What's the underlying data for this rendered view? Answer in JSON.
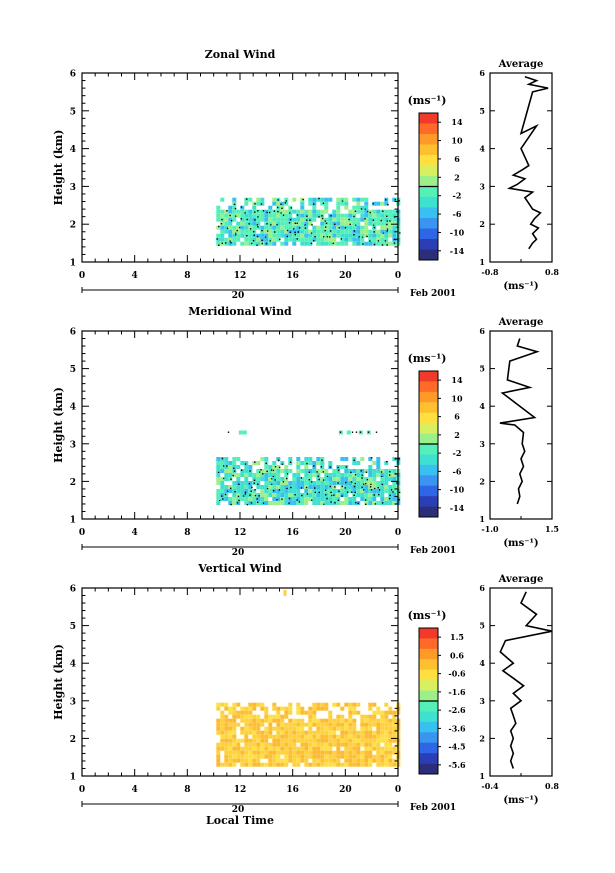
{
  "chart_data": [
    {
      "type": "heatmap",
      "title": "Zonal Wind",
      "ylabel": "Height (km)",
      "ylim": [
        1,
        6
      ],
      "yticks": [
        "1",
        "2",
        "3",
        "4",
        "5",
        "6"
      ],
      "xticks": [
        "0",
        "4",
        "8",
        "12",
        "16",
        "20",
        "0"
      ],
      "xlim": [
        0,
        24
      ],
      "date_day": "20",
      "date_month": "Feb 2001",
      "colorbar": {
        "unit": "(ms⁻¹)",
        "labels": [
          "14",
          "10",
          "6",
          "2",
          "-2",
          "-6",
          "-10",
          "-14"
        ]
      },
      "data_region": {
        "x_start": 10.2,
        "x_end": 24,
        "y_start": 1.45,
        "y_end": 2.7,
        "dominant_color": "#55f0b8"
      },
      "average_profile": {
        "title": "Average",
        "xlabel": "(ms⁻¹)",
        "xticks": [
          "-0.8",
          "0.8"
        ],
        "xlim": [
          -0.8,
          0.8
        ],
        "ylim": [
          1,
          6
        ],
        "points": [
          [
            0.2,
            1.35
          ],
          [
            0.3,
            1.5
          ],
          [
            0.4,
            1.6
          ],
          [
            0.3,
            1.75
          ],
          [
            0.45,
            1.9
          ],
          [
            0.25,
            2.0
          ],
          [
            0.35,
            2.15
          ],
          [
            0.5,
            2.3
          ],
          [
            0.3,
            2.4
          ],
          [
            0.2,
            2.55
          ],
          [
            0.1,
            2.7
          ],
          [
            0.3,
            2.85
          ],
          [
            -0.3,
            2.95
          ],
          [
            -0.1,
            3.05
          ],
          [
            0.1,
            3.2
          ],
          [
            -0.2,
            3.3
          ],
          [
            0.05,
            3.45
          ],
          [
            0.2,
            3.55
          ],
          [
            0.0,
            4.0
          ],
          [
            0.4,
            4.6
          ],
          [
            0.2,
            4.5
          ],
          [
            0.0,
            4.4
          ],
          [
            0.3,
            5.5
          ],
          [
            0.7,
            5.6
          ],
          [
            0.2,
            5.7
          ],
          [
            0.4,
            5.8
          ],
          [
            0.1,
            5.9
          ]
        ]
      }
    },
    {
      "type": "heatmap",
      "title": "Meridional Wind",
      "ylabel": "Height (km)",
      "ylim": [
        1,
        6
      ],
      "yticks": [
        "1",
        "2",
        "3",
        "4",
        "5",
        "6"
      ],
      "xticks": [
        "0",
        "4",
        "8",
        "12",
        "16",
        "20",
        "0"
      ],
      "xlim": [
        0,
        24
      ],
      "date_day": "20",
      "date_month": "Feb 2001",
      "colorbar": {
        "unit": "(ms⁻¹)",
        "labels": [
          "14",
          "10",
          "6",
          "2",
          "-2",
          "-6",
          "-10",
          "-14"
        ]
      },
      "data_region": {
        "x_start": 10.2,
        "x_end": 24,
        "y_start": 1.45,
        "y_end": 2.65,
        "dominant_color": "#3ee0d0"
      },
      "average_profile": {
        "title": "Average",
        "xlabel": "(ms⁻¹)",
        "xticks": [
          "-1.0",
          "1.5"
        ],
        "xlim": [
          -1.0,
          1.5
        ],
        "ylim": [
          1,
          6
        ],
        "points": [
          [
            0.1,
            1.4
          ],
          [
            0.2,
            1.6
          ],
          [
            0.15,
            1.8
          ],
          [
            0.3,
            2.0
          ],
          [
            0.2,
            2.2
          ],
          [
            0.35,
            2.4
          ],
          [
            0.25,
            2.6
          ],
          [
            0.4,
            2.8
          ],
          [
            0.3,
            3.0
          ],
          [
            0.35,
            3.3
          ],
          [
            0.0,
            3.5
          ],
          [
            -0.6,
            3.55
          ],
          [
            0.8,
            3.7
          ],
          [
            -0.5,
            4.35
          ],
          [
            0.6,
            4.5
          ],
          [
            -0.3,
            4.7
          ],
          [
            -0.2,
            5.2
          ],
          [
            0.9,
            5.45
          ],
          [
            0.1,
            5.6
          ],
          [
            0.2,
            5.8
          ]
        ]
      }
    },
    {
      "type": "heatmap",
      "title": "Vertical Wind",
      "ylabel": "Height (km)",
      "xlabel": "Local Time",
      "ylim": [
        1,
        6
      ],
      "yticks": [
        "1",
        "2",
        "3",
        "4",
        "5",
        "6"
      ],
      "xticks": [
        "0",
        "4",
        "8",
        "12",
        "16",
        "20",
        "0"
      ],
      "xlim": [
        0,
        24
      ],
      "date_day": "20",
      "date_month": "Feb 2001",
      "colorbar": {
        "unit": "(ms⁻¹)",
        "labels": [
          "1.5",
          "0.6",
          "-0.6",
          "-1.6",
          "-2.6",
          "-3.6",
          "-4.5",
          "-5.6"
        ]
      },
      "data_region": {
        "x_start": 10.2,
        "x_end": 24,
        "y_start": 1.35,
        "y_end": 2.95,
        "dominant_color": "#ffd23c"
      },
      "average_profile": {
        "title": "Average",
        "xlabel": "(ms⁻¹)",
        "xticks": [
          "-0.4",
          "0.8"
        ],
        "xlim": [
          -0.4,
          0.8
        ],
        "ylim": [
          1,
          6
        ],
        "points": [
          [
            0.05,
            1.2
          ],
          [
            0.0,
            1.4
          ],
          [
            0.05,
            1.6
          ],
          [
            0.0,
            1.8
          ],
          [
            0.05,
            2.0
          ],
          [
            0.0,
            2.2
          ],
          [
            0.1,
            2.4
          ],
          [
            0.05,
            2.6
          ],
          [
            0.0,
            2.8
          ],
          [
            0.2,
            3.0
          ],
          [
            0.05,
            3.2
          ],
          [
            0.25,
            3.4
          ],
          [
            0.05,
            3.6
          ],
          [
            -0.15,
            3.8
          ],
          [
            0.05,
            4.0
          ],
          [
            -0.2,
            4.3
          ],
          [
            -0.1,
            4.6
          ],
          [
            0.8,
            4.85
          ],
          [
            0.3,
            5.0
          ],
          [
            0.5,
            5.3
          ],
          [
            0.2,
            5.6
          ],
          [
            0.3,
            5.9
          ]
        ]
      }
    }
  ]
}
